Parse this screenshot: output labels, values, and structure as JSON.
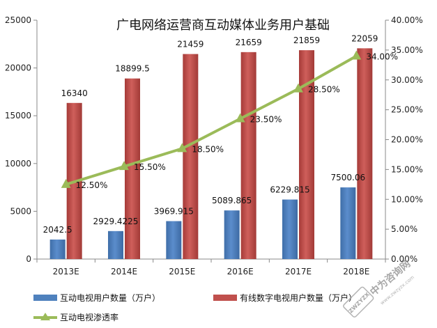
{
  "chart_data": {
    "type": "bar",
    "title": "广电网络运营商互动媒体业务用户基础",
    "categories": [
      "2013E",
      "2014E",
      "2015E",
      "2016E",
      "2017E",
      "2018E"
    ],
    "series": [
      {
        "name": "互动电视用户数量（万户）",
        "type": "bar",
        "axis": "left",
        "color": "#4f81bd",
        "values": [
          2042.5,
          2929.4225,
          3969.915,
          5089.865,
          6229.815,
          7500.06
        ],
        "labels": [
          "2042.5",
          "2929.4225",
          "3969.915",
          "5089.865",
          "6229.815",
          "7500.06"
        ]
      },
      {
        "name": "有线数字电视用户数量（万户）",
        "type": "bar",
        "axis": "left",
        "color": "#c0504d",
        "values": [
          16340,
          18899.5,
          21459,
          21659,
          21859,
          22059
        ],
        "labels": [
          "16340",
          "18899.5",
          "21459",
          "21659",
          "21859",
          "22059"
        ]
      },
      {
        "name": "互动电视渗透率",
        "type": "line",
        "axis": "right",
        "color": "#9bbb59",
        "values": [
          12.5,
          15.5,
          18.5,
          23.5,
          28.5,
          34.0
        ],
        "labels": [
          "12.50%",
          "15.50%",
          "18.50%",
          "23.50%",
          "28.50%",
          "34.00%"
        ]
      }
    ],
    "y_left": {
      "ylim": [
        0,
        25000
      ],
      "ticks": [
        0,
        5000,
        10000,
        15000,
        20000,
        25000
      ],
      "tick_labels": [
        "0",
        "5000",
        "10000",
        "15000",
        "20000",
        "25000"
      ]
    },
    "y_right": {
      "ylim": [
        0,
        40
      ],
      "ticks": [
        0,
        5,
        10,
        15,
        20,
        25,
        30,
        35,
        40
      ],
      "tick_labels": [
        "0.00%",
        "5.00%",
        "10.00%",
        "15.00%",
        "20.00%",
        "25.00%",
        "30.00%",
        "35.00%",
        "40.00%"
      ]
    },
    "grid": false,
    "legend_position": "bottom"
  },
  "watermark": {
    "main": "中为咨询网",
    "url": "www.zwzyzx.com",
    "badge": "ZWZYZX"
  }
}
